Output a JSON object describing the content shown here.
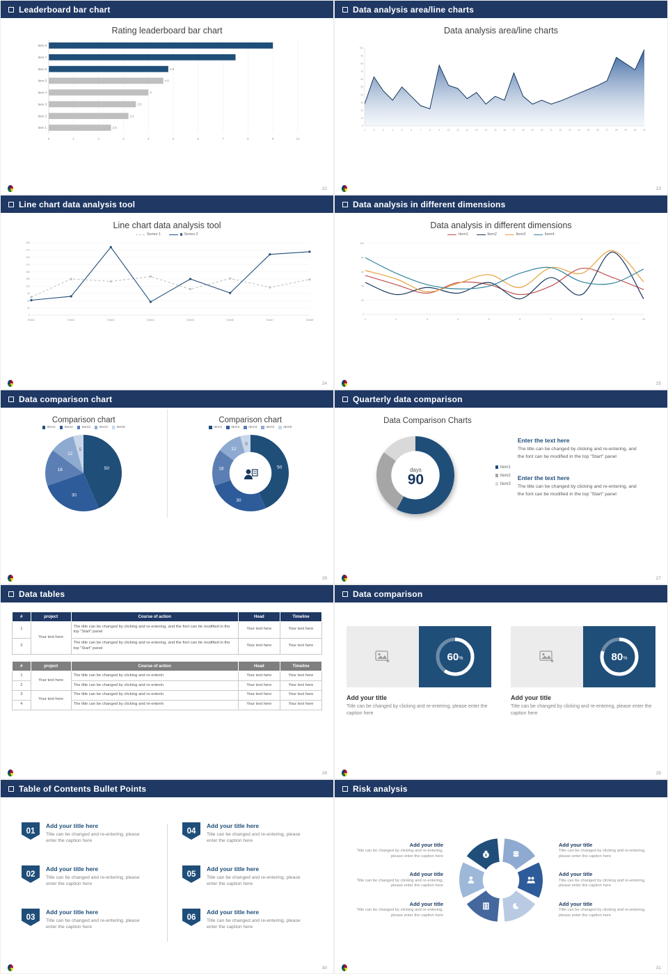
{
  "theme": {
    "navy": "#1F3864",
    "blue": "#1F4E79",
    "mid_blue": "#2E5B9A",
    "bar_gray": "#BFBFBF",
    "text_dark": "#404040",
    "text_muted": "#808080"
  },
  "slides": [
    {
      "header": "Leaderboard bar chart",
      "page": "22",
      "title": "Rating leaderboard bar chart",
      "chart_data": {
        "type": "barh",
        "title": "Rating leaderboard bar chart",
        "categories": [
          "Item 8",
          "Item 7",
          "Item 6",
          "Item 5",
          "Item 4",
          "Item 3",
          "Item 2",
          "Item 1"
        ],
        "values": [
          9,
          7.5,
          4.8,
          4.6,
          4,
          3.5,
          3.2,
          2.5
        ],
        "bar_labels": [
          "",
          "",
          "4.8",
          "4.6",
          "4",
          "3.5",
          "3.2",
          "2.5"
        ],
        "colors": [
          "#1F4E79",
          "#1F4E79",
          "#1F4E79",
          "#BFBFBF",
          "#BFBFBF",
          "#BFBFBF",
          "#BFBFBF",
          "#BFBFBF"
        ],
        "xlim": [
          0,
          10
        ],
        "xticks": [
          0,
          1,
          2,
          3,
          4,
          5,
          6,
          7,
          8,
          9,
          10
        ]
      }
    },
    {
      "header": "Data analysis area/line charts",
      "page": "23",
      "title": "Data analysis area/line charts",
      "chart_data": {
        "type": "area",
        "x_ticks": [
          "1",
          "2",
          "3",
          "4",
          "5",
          "6",
          "7",
          "8",
          "9",
          "10",
          "11",
          "12",
          "13",
          "14",
          "15",
          "16",
          "17",
          "18",
          "19",
          "20",
          "21",
          "22",
          "23",
          "24",
          "25",
          "26",
          "27",
          "28",
          "29",
          "30",
          "31"
        ],
        "values": [
          28,
          63,
          45,
          33,
          50,
          38,
          26,
          22,
          78,
          52,
          48,
          35,
          43,
          28,
          38,
          33,
          68,
          38,
          28,
          33,
          28,
          32,
          37,
          42,
          47,
          52,
          58,
          88,
          80,
          72,
          98
        ],
        "ylim": [
          0,
          100
        ],
        "yticks": [
          0,
          10,
          20,
          30,
          40,
          50,
          60,
          70,
          80,
          90,
          100
        ],
        "line_color": "#17375E",
        "fill_from": "#2E5B9A",
        "fill_to": "#EAF1F8"
      }
    },
    {
      "header": "Line chart data analysis tool",
      "page": "24",
      "title": "Line chart data analysis tool",
      "chart_data": {
        "type": "line",
        "categories": [
          "Data1",
          "Data2",
          "Data3",
          "Data4",
          "Data5",
          "Data6",
          "Data7",
          "Data8"
        ],
        "ylim": [
          0,
          300
        ],
        "yticks": [
          0,
          30,
          60,
          90,
          120,
          150,
          180,
          210,
          240,
          270,
          300
        ],
        "series": [
          {
            "name": "Series 1",
            "color": "#BFBFBF",
            "dash": "3,3",
            "marker": true,
            "values": [
              75,
              150,
              140,
              160,
              108,
              152,
              115,
              148
            ]
          },
          {
            "name": "Series 2",
            "color": "#1F4E79",
            "dash": "",
            "marker": true,
            "values": [
              62,
              78,
              282,
              55,
              150,
              92,
              252,
              263
            ]
          }
        ]
      }
    },
    {
      "header": "Data analysis in different dimensions",
      "page": "25",
      "title": "Data analysis in different dimensions",
      "chart_data": {
        "type": "line",
        "smooth": true,
        "categories": [
          "1",
          "2",
          "3",
          "4",
          "5",
          "6",
          "7",
          "8",
          "9",
          "10"
        ],
        "ylim": [
          0,
          100
        ],
        "yticks": [
          0,
          20,
          40,
          60,
          80,
          100
        ],
        "series": [
          {
            "name": "Item1",
            "color": "#C0504D",
            "values": [
              55,
              42,
              30,
              45,
              42,
              28,
              40,
              65,
              52,
              35
            ]
          },
          {
            "name": "Item2",
            "color": "#17375E",
            "values": [
              45,
              28,
              38,
              30,
              45,
              22,
              52,
              28,
              88,
              22
            ]
          },
          {
            "name": "Item3",
            "color": "#E8A23D",
            "values": [
              62,
              50,
              32,
              44,
              56,
              38,
              66,
              58,
              90,
              46
            ]
          },
          {
            "name": "Item4",
            "color": "#31859C",
            "values": [
              80,
              58,
              42,
              36,
              40,
              58,
              66,
              46,
              44,
              64
            ]
          }
        ]
      }
    },
    {
      "header": "Data comparison chart",
      "page": "26",
      "left": {
        "title": "Comparison chart",
        "legend": [
          "Item1",
          "Item2",
          "Item3",
          "Item4",
          "Item5"
        ],
        "chart_data": {
          "type": "pie",
          "values": [
            50,
            30,
            18,
            12,
            5
          ],
          "labels": [
            "50",
            "30",
            "18",
            "12",
            "5"
          ],
          "colors": [
            "#1F4E79",
            "#2E5B9A",
            "#5B7FB4",
            "#8FAAD0",
            "#C7D6EA"
          ],
          "label_colors": [
            "#ffffff",
            "#ffffff",
            "#ffffff",
            "#ffffff",
            "#666666"
          ]
        }
      },
      "right": {
        "title": "Comparison chart",
        "legend": [
          "Item1",
          "Item2",
          "Item3",
          "Item4",
          "Item5"
        ],
        "chart_data": {
          "type": "donut",
          "inner": 0.55,
          "values": [
            50,
            30,
            18,
            12,
            5
          ],
          "labels": [
            "50",
            "30",
            "18",
            "12",
            "5"
          ],
          "colors": [
            "#1F4E79",
            "#2E5B9A",
            "#5B7FB4",
            "#8FAAD0",
            "#C7D6EA"
          ],
          "label_colors": [
            "#ffffff",
            "#ffffff",
            "#ffffff",
            "#ffffff",
            "#666666"
          ]
        }
      }
    },
    {
      "header": "Quarterly data comparison",
      "page": "27",
      "title": "Data Comparison Charts",
      "center_top": "days",
      "center_big": "90",
      "legend": [
        "Item1",
        "Item2",
        "Item3"
      ],
      "chart_data": {
        "type": "donut",
        "inner": 0.62,
        "values": [
          58,
          27,
          15
        ],
        "labels": [
          "",
          "",
          ""
        ],
        "colors": [
          "#1F4E79",
          "#A6A6A6",
          "#D9D9D9"
        ],
        "label_colors": [
          "#ffffff",
          "#ffffff",
          "#ffffff"
        ]
      },
      "blocks": [
        {
          "heading": "Enter the text here",
          "body": "The title can be changed by clicking and re-entering, and the font can be modified in the top \"Start\" panel"
        },
        {
          "heading": "Enter the text here",
          "body": "The title can be changed by clicking and re-entering, and the font can be modified in the top \"Start\" panel"
        }
      ]
    },
    {
      "header": "Data tables",
      "page": "28",
      "table1": {
        "headers": [
          "#",
          "project",
          "Course of action",
          "Head",
          "Timeline"
        ],
        "project": "Your text here",
        "rows": [
          {
            "num": "1",
            "course": "The title can be changed by clicking and re-entering, and the font can be modified in the top \"Start\" panel",
            "head": "Your text here",
            "timeline": "Your text here"
          },
          {
            "num": "2",
            "course": "The title can be changed by clicking and re-entering, and the font can be modified in the top \"Start\" panel",
            "head": "Your text here",
            "timeline": "Your text here"
          }
        ]
      },
      "table2": {
        "headers": [
          "#",
          "project",
          "Course of action",
          "Head",
          "Timeline"
        ],
        "project_a": "Your text here",
        "project_b": "Your text here",
        "rows": [
          {
            "num": "1",
            "course": "The title can be changed by clicking and re-enterin",
            "head": "Your text here",
            "timeline": "Your text here"
          },
          {
            "num": "2",
            "course": "The title can be changed by clicking and re-enterin",
            "head": "Your text here",
            "timeline": "Your text here"
          },
          {
            "num": "3",
            "course": "The title can be changed by clicking and re-enterin",
            "head": "Your text here",
            "timeline": "Your text here"
          },
          {
            "num": "4",
            "course": "The title can be changed by clicking and re-enterin",
            "head": "Your text here",
            "timeline": "Your text here"
          }
        ]
      }
    },
    {
      "header": "Data comparison",
      "page": "29",
      "cards": [
        {
          "title": "Add your title",
          "caption": "Title can be changed by clicking and re-entering, please enter the caption here",
          "chart_data": {
            "type": "ring",
            "value": 60,
            "suffix": "%"
          }
        },
        {
          "title": "Add your title",
          "caption": "Title can be changed by clicking and re-entering, please enter the caption here",
          "chart_data": {
            "type": "ring",
            "value": 80,
            "suffix": "%"
          }
        }
      ]
    },
    {
      "header": "Table of Contents Bullet Points",
      "page": "30",
      "items": [
        {
          "num": "01",
          "title": "Add your title here",
          "caption": "Title can be changed and re-entering, please enter the caption here"
        },
        {
          "num": "02",
          "title": "Add your title here",
          "caption": "Title can be changed and re-entering, please enter the caption here"
        },
        {
          "num": "03",
          "title": "Add your title here",
          "caption": "Title can be changed and re-entering, please enter the caption here"
        },
        {
          "num": "04",
          "title": "Add your title here",
          "caption": "Title can be changed and re-entering, please enter the caption here"
        },
        {
          "num": "05",
          "title": "Add your title here",
          "caption": "Title can be changed and re-entering, please enter the caption here"
        },
        {
          "num": "06",
          "title": "Add your title here",
          "caption": "Title can be changed and re-entering, please enter the caption here"
        }
      ]
    },
    {
      "header": "Risk analysis",
      "page": "31",
      "chart_data": {
        "type": "cycle",
        "colors": [
          "#1F4E79",
          "#8FAAD0",
          "#2E5B9A",
          "#B9CBE3",
          "#44689E",
          "#9DB8D9"
        ],
        "icons": [
          "money-bag-icon",
          "coins-icon",
          "people-icon",
          "pie-chart-icon",
          "building-icon",
          "person-icon"
        ]
      },
      "items": [
        {
          "title": "Add your title",
          "caption": "Title can be changed by clicking and re-entering, please enter the caption here"
        },
        {
          "title": "Add your title",
          "caption": "Title can be changed by clicking and re-entering, please enter the caption here"
        },
        {
          "title": "Add your title",
          "caption": "Title can be changed by clicking and re-entering, please enter the caption here"
        },
        {
          "title": "Add your title",
          "caption": "Title can be changed by clicking and re-entering, please enter the caption here"
        },
        {
          "title": "Add your title",
          "caption": "Title can be changed by clicking and re-entering, please enter the caption here"
        },
        {
          "title": "Add your title",
          "caption": "Title can be changed by clicking and re-entering, please enter the caption here"
        }
      ]
    }
  ]
}
